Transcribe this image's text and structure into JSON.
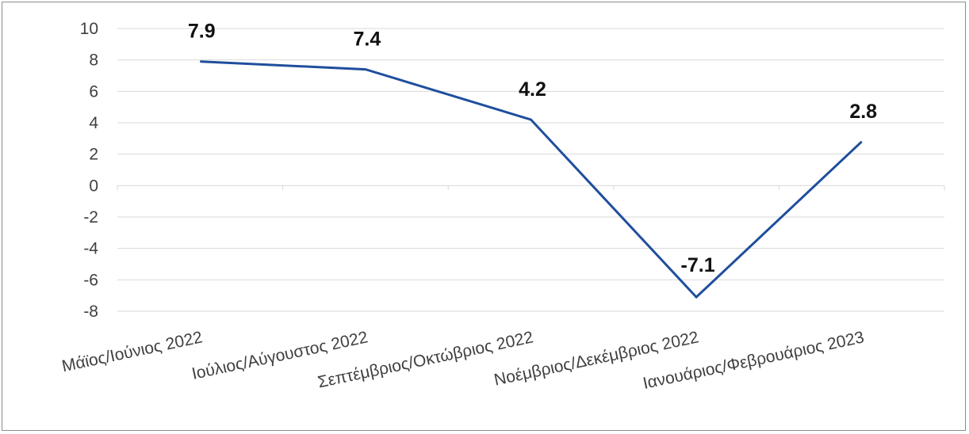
{
  "chart_data": {
    "type": "line",
    "categories": [
      "Μάϊος/Ιούνιος 2022",
      "Ιούλιος/Αύγουστος 2022",
      "Σεπτέμβριος/Οκτώβριος 2022",
      "Νοέμβριος/Δεκέμβριος 2022",
      "Ιανουάριος/Φεβρουάριος 2023"
    ],
    "series": [
      {
        "values": [
          7.9,
          7.4,
          4.2,
          -7.1,
          2.8
        ]
      }
    ],
    "data_labels": [
      "7.9",
      "7.4",
      "4.2",
      "-7.1",
      "2.8"
    ],
    "yticks": [
      "10",
      "8",
      "6",
      "4",
      "2",
      "0",
      "-2",
      "-4",
      "-6",
      "-8"
    ],
    "ylim": [
      -8,
      10
    ],
    "grid": true,
    "legend": "none",
    "colors": {
      "line": "#1f4e9c",
      "grid": "#d9d9d9"
    }
  }
}
